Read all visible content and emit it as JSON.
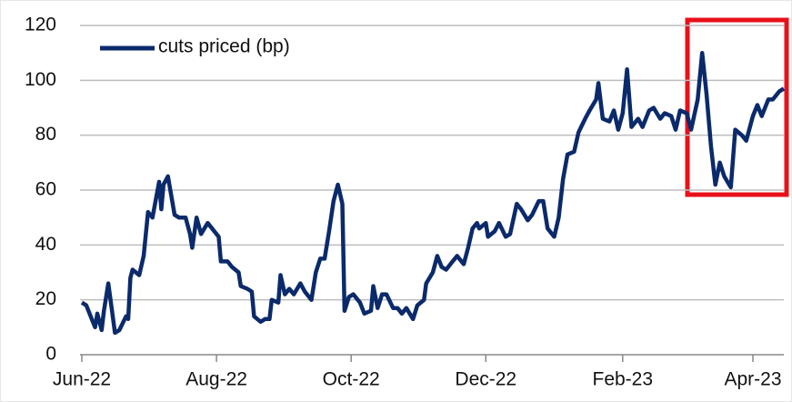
{
  "chart_data": {
    "type": "line",
    "xlim": [
      0,
      318
    ],
    "xticks": [
      {
        "value": 0,
        "label": "Jun-22"
      },
      {
        "value": 61,
        "label": "Aug-22"
      },
      {
        "value": 122,
        "label": "Oct-22"
      },
      {
        "value": 183,
        "label": "Dec-22"
      },
      {
        "value": 245,
        "label": "Feb-23"
      },
      {
        "value": 304,
        "label": "Apr-23"
      }
    ],
    "ylim": [
      0,
      120
    ],
    "yticks": [
      0,
      20,
      40,
      60,
      80,
      100,
      120
    ],
    "grid": true,
    "legend": "upper left",
    "x": [
      0,
      2,
      5,
      6,
      7,
      9,
      10,
      12,
      14,
      15,
      17,
      20,
      21,
      22,
      23,
      26,
      28,
      30,
      32,
      35,
      36,
      37,
      39,
      42,
      44,
      47,
      49,
      50,
      52,
      54,
      57,
      59,
      62,
      63,
      66,
      68,
      71,
      72,
      75,
      77,
      78,
      81,
      83,
      85,
      86,
      89,
      90,
      92,
      94,
      96,
      99,
      101,
      104,
      106,
      108,
      110,
      112,
      114,
      116,
      118,
      119,
      121,
      123,
      126,
      128,
      131,
      132,
      134,
      136,
      138,
      141,
      143,
      145,
      147,
      150,
      152,
      155,
      156,
      159,
      161,
      163,
      165,
      168,
      170,
      173,
      175,
      177,
      179,
      180,
      183,
      184,
      187,
      189,
      192,
      194,
      197,
      199,
      202,
      204,
      207,
      209,
      211,
      214,
      216,
      218,
      220,
      223,
      225,
      228,
      230,
      233,
      234,
      236,
      239,
      241,
      243,
      245,
      247,
      249,
      252,
      254,
      257,
      259,
      262,
      264,
      267,
      269,
      271,
      274,
      276,
      279,
      281,
      283,
      285,
      287,
      289,
      291,
      294,
      296,
      299,
      301,
      304,
      306,
      308,
      311,
      313,
      316,
      318
    ],
    "series": [
      {
        "name": "cuts priced (bp)",
        "color": "#0b2a6b",
        "values": [
          19,
          18,
          12,
          10,
          15,
          9,
          16,
          26,
          14,
          8,
          9,
          14,
          13,
          28,
          31,
          29,
          36,
          52,
          50,
          63,
          53,
          62,
          65,
          51,
          50,
          50,
          44,
          39,
          50,
          44,
          48,
          46,
          43,
          34,
          34,
          32,
          30,
          25,
          24,
          23,
          14,
          12,
          13,
          13,
          20,
          19,
          29,
          22,
          24,
          22,
          26,
          23,
          20,
          30,
          35,
          35,
          45,
          56,
          62,
          55,
          16,
          21,
          22,
          19,
          15,
          16,
          25,
          17,
          22,
          22,
          17,
          17,
          15,
          17,
          13,
          18,
          20,
          26,
          30,
          36,
          32,
          31,
          34,
          36,
          33,
          39,
          46,
          48,
          46,
          48,
          43,
          45,
          48,
          43,
          44,
          55,
          53,
          49,
          51,
          56,
          56,
          46,
          43,
          50,
          64,
          73,
          74,
          81,
          86,
          89,
          93,
          99,
          86,
          85,
          89,
          82,
          88,
          104,
          83,
          86,
          83,
          89,
          90,
          86,
          88,
          87,
          82,
          89,
          88,
          82,
          93,
          110,
          95,
          76,
          62,
          70,
          65,
          61,
          82,
          80,
          78,
          87,
          91,
          87,
          93,
          93,
          96,
          97
        ]
      }
    ]
  }
}
